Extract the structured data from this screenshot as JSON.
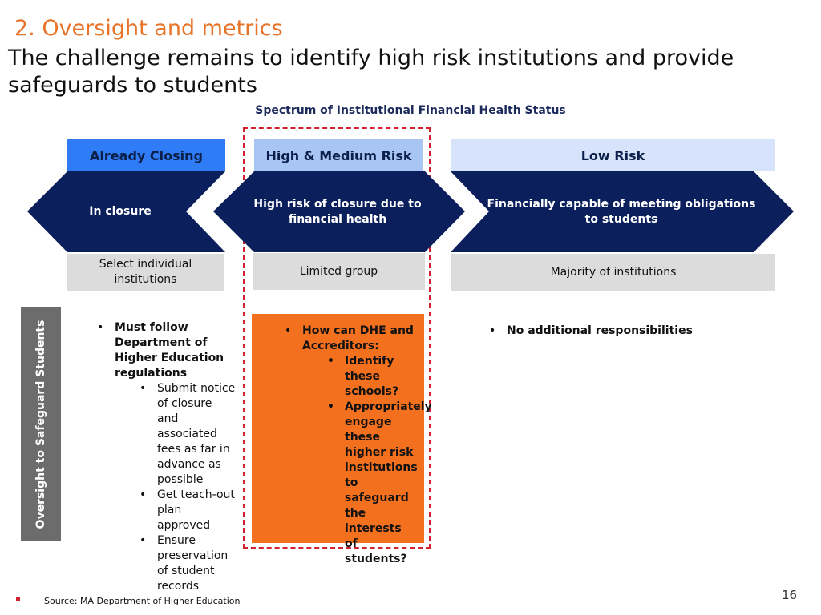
{
  "slide": {
    "section_title": "2. Oversight and metrics",
    "headline": "The challenge remains to identify high risk institutions and provide safeguards to students",
    "spectrum_title": "Spectrum of Institutional Financial Health Status",
    "page_number": "16",
    "source": "Source: MA Department of Higher Education"
  },
  "categories": [
    {
      "header": "Already Closing",
      "chevron_text": "In closure",
      "group": "Select individual institutions"
    },
    {
      "header": "High & Medium Risk",
      "chevron_text": "High risk of closure due to financial health",
      "group": "Limited group"
    },
    {
      "header": "Low Risk",
      "chevron_text": "Financially capable of meeting obligations to students",
      "group": "Majority of institutions"
    }
  ],
  "oversight": {
    "label": "Oversight to Safeguard Students",
    "closing": {
      "main": "Must follow Department of Higher Education regulations",
      "subs": [
        "Submit notice of closure and associated fees as far in advance as possible",
        "Get teach-out plan approved",
        "Ensure preservation of student records"
      ]
    },
    "highmed": {
      "main": "How can DHE and Accreditors:",
      "subs": [
        "Identify these schools?",
        "Appropriately engage these higher risk institutions to safeguard the interests of students?"
      ]
    },
    "low": {
      "main": "No additional responsibilities"
    }
  },
  "colors": {
    "accent_orange": "#f2701e",
    "navy": "#0b1f5c",
    "header_closing": "#2f7cf6",
    "header_highmed": "#a9c5f3",
    "header_low": "#d6e3fb",
    "dashed_outline": "#d2202f"
  }
}
